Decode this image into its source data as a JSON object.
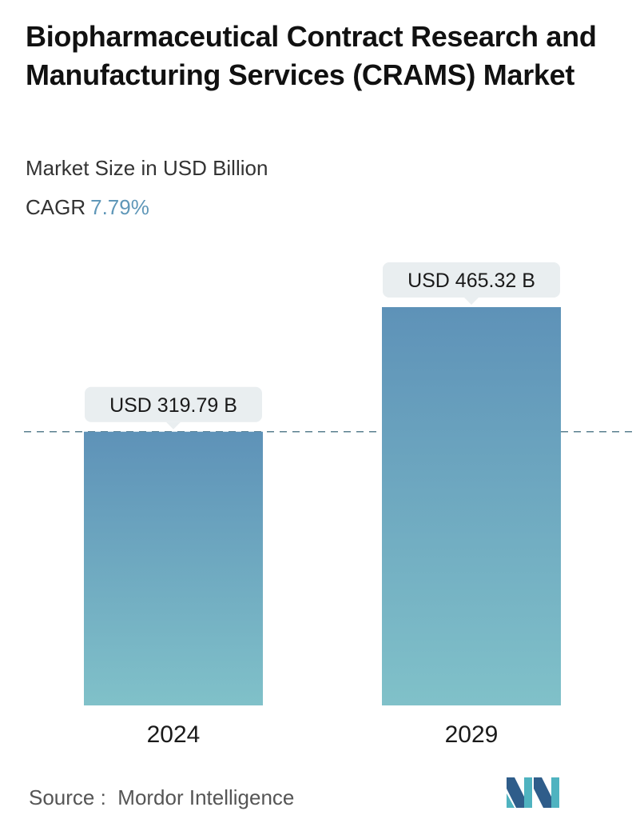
{
  "header": {
    "title": "Biopharmaceutical Contract Research and Manufacturing Services (CRAMS) Market",
    "subtitle": "Market Size in USD Billion",
    "cagr_label": "CAGR",
    "cagr_value": "7.79%"
  },
  "chart_data": {
    "type": "bar",
    "title": "Biopharmaceutical Contract Research and Manufacturing Services (CRAMS) Market",
    "subtitle": "Market Size in USD Billion",
    "categories": [
      "2024",
      "2029"
    ],
    "values": [
      319.79,
      465.32
    ],
    "data_labels": [
      "USD 319.79 B",
      "USD 465.32 B"
    ],
    "xlabel": "",
    "ylabel": "",
    "ylim": [
      0,
      465.32
    ],
    "reference_line": 319.79,
    "grid": false,
    "legend": "none",
    "colors": {
      "bar_top": "#5e92b8",
      "bar_bottom": "#80c1c9",
      "label_bg": "#e9eef0",
      "reference_line": "#5a7f8f"
    }
  },
  "footer": {
    "source_label": "Source :",
    "source_name": "Mordor Intelligence",
    "logo_icon": "mordor-intelligence-logo-icon"
  }
}
